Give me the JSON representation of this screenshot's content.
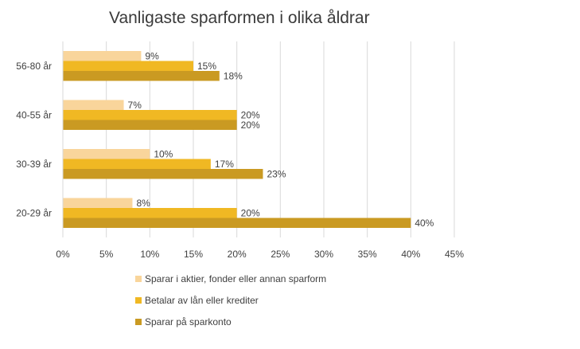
{
  "chart_data": {
    "type": "bar",
    "orientation": "horizontal",
    "title": "Vanligaste sparformen i olika åldrar",
    "categories": [
      "56-80 år",
      "40-55 år",
      "30-39 år",
      "20-29 år"
    ],
    "series": [
      {
        "name": "Sparar i aktier, fonder eller annan sparform",
        "values": [
          9,
          7,
          10,
          8
        ],
        "labels": [
          "9%",
          "7%",
          "10%",
          "8%"
        ],
        "color": "#F9D59B"
      },
      {
        "name": "Betalar av lån eller krediter",
        "values": [
          15,
          20,
          17,
          20
        ],
        "labels": [
          "15%",
          "20%",
          "17%",
          "20%"
        ],
        "color": "#F0B823"
      },
      {
        "name": "Sparar på sparkonto",
        "values": [
          18,
          20,
          23,
          40
        ],
        "labels": [
          "18%",
          "20%",
          "23%",
          "40%"
        ],
        "color": "#CA9A22"
      }
    ],
    "xlim": [
      0,
      45
    ],
    "xticks": [
      0,
      5,
      10,
      15,
      20,
      25,
      30,
      35,
      40,
      45
    ],
    "xtick_labels": [
      "0%",
      "5%",
      "10%",
      "15%",
      "20%",
      "25%",
      "30%",
      "35%",
      "40%",
      "45%"
    ],
    "xlabel": "",
    "ylabel": "",
    "grid": "vertical",
    "legend_position": "bottom",
    "colors": {
      "grid": "#D9D9D9",
      "text": "#404040"
    }
  }
}
